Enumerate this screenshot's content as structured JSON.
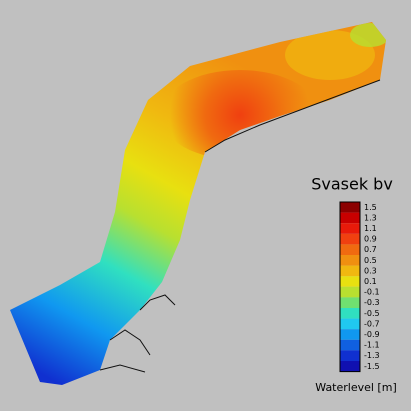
{
  "company": "Svasek bv",
  "legend": {
    "title": "Waterlevel [m]",
    "ticks": [
      1.5,
      1.3,
      1.1,
      0.9,
      0.7,
      0.5,
      0.3,
      0.1,
      -0.1,
      -0.3,
      -0.5,
      -0.7,
      -0.9,
      -1.1,
      -1.3,
      -1.5
    ],
    "colors": [
      "#8b0000",
      "#c80000",
      "#e81a0a",
      "#f04010",
      "#f06a10",
      "#f09010",
      "#f0b810",
      "#e8e010",
      "#b8e030",
      "#70e070",
      "#30e0c0",
      "#20c8f0",
      "#1098f0",
      "#1060e0",
      "#1030d0",
      "#1010b0"
    ]
  }
}
